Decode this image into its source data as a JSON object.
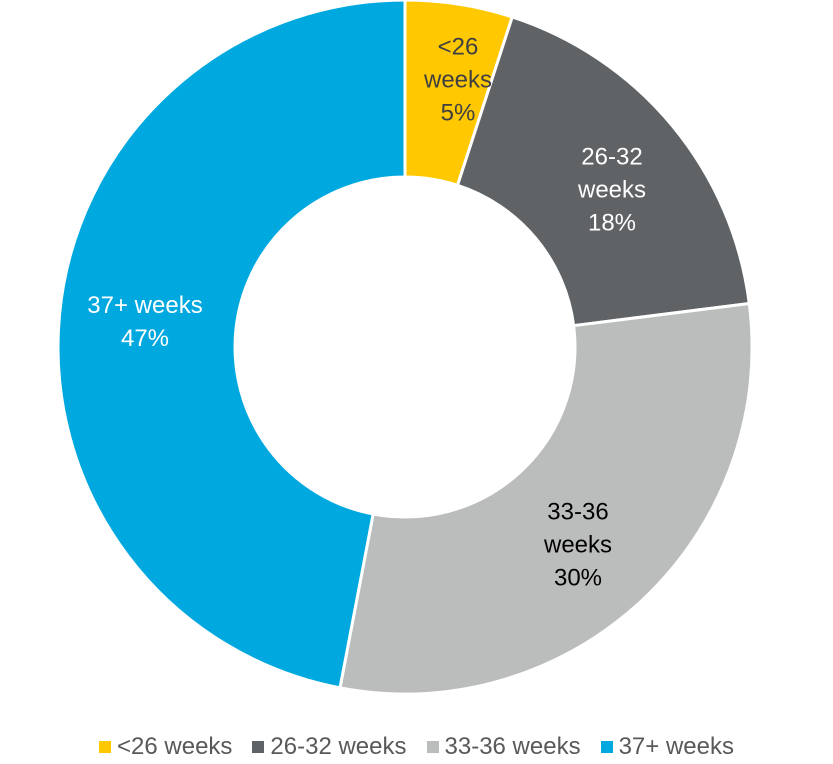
{
  "chart_data": {
    "type": "donut",
    "categories": [
      "<26 weeks",
      "26-32 weeks",
      "33-36 weeks",
      "37+ weeks"
    ],
    "values": [
      5,
      18,
      30,
      47
    ],
    "value_labels": [
      "5%",
      "18%",
      "30%",
      "47%"
    ],
    "colors": [
      "#ffc800",
      "#606366",
      "#bbbdbc",
      "#00a8e0"
    ],
    "legend": "bottom"
  }
}
